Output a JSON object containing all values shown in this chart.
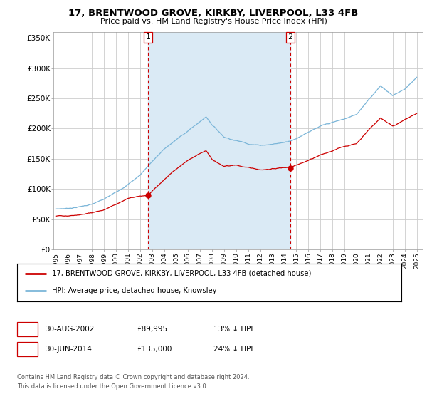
{
  "title_line1": "17, BRENTWOOD GROVE, KIRKBY, LIVERPOOL, L33 4FB",
  "title_line2": "Price paid vs. HM Land Registry's House Price Index (HPI)",
  "ylabel_ticks": [
    "£0",
    "£50K",
    "£100K",
    "£150K",
    "£200K",
    "£250K",
    "£300K",
    "£350K"
  ],
  "ylabel_values": [
    0,
    50000,
    100000,
    150000,
    200000,
    250000,
    300000,
    350000
  ],
  "ylim": [
    0,
    360000
  ],
  "xlim_start": 1994.8,
  "xlim_end": 2025.5,
  "sale1_year": 2002.667,
  "sale1_price": 89995,
  "sale2_year": 2014.5,
  "sale2_price": 135000,
  "legend_line1": "17, BRENTWOOD GROVE, KIRKBY, LIVERPOOL, L33 4FB (detached house)",
  "legend_line2": "HPI: Average price, detached house, Knowsley",
  "footer_line1": "Contains HM Land Registry data © Crown copyright and database right 2024.",
  "footer_line2": "This data is licensed under the Open Government Licence v3.0.",
  "hpi_color": "#7ab5d8",
  "hpi_fill_color": "#daeaf5",
  "sold_color": "#cc0000",
  "vline_color": "#cc0000",
  "background_color": "#ffffff",
  "grid_color": "#cccccc"
}
